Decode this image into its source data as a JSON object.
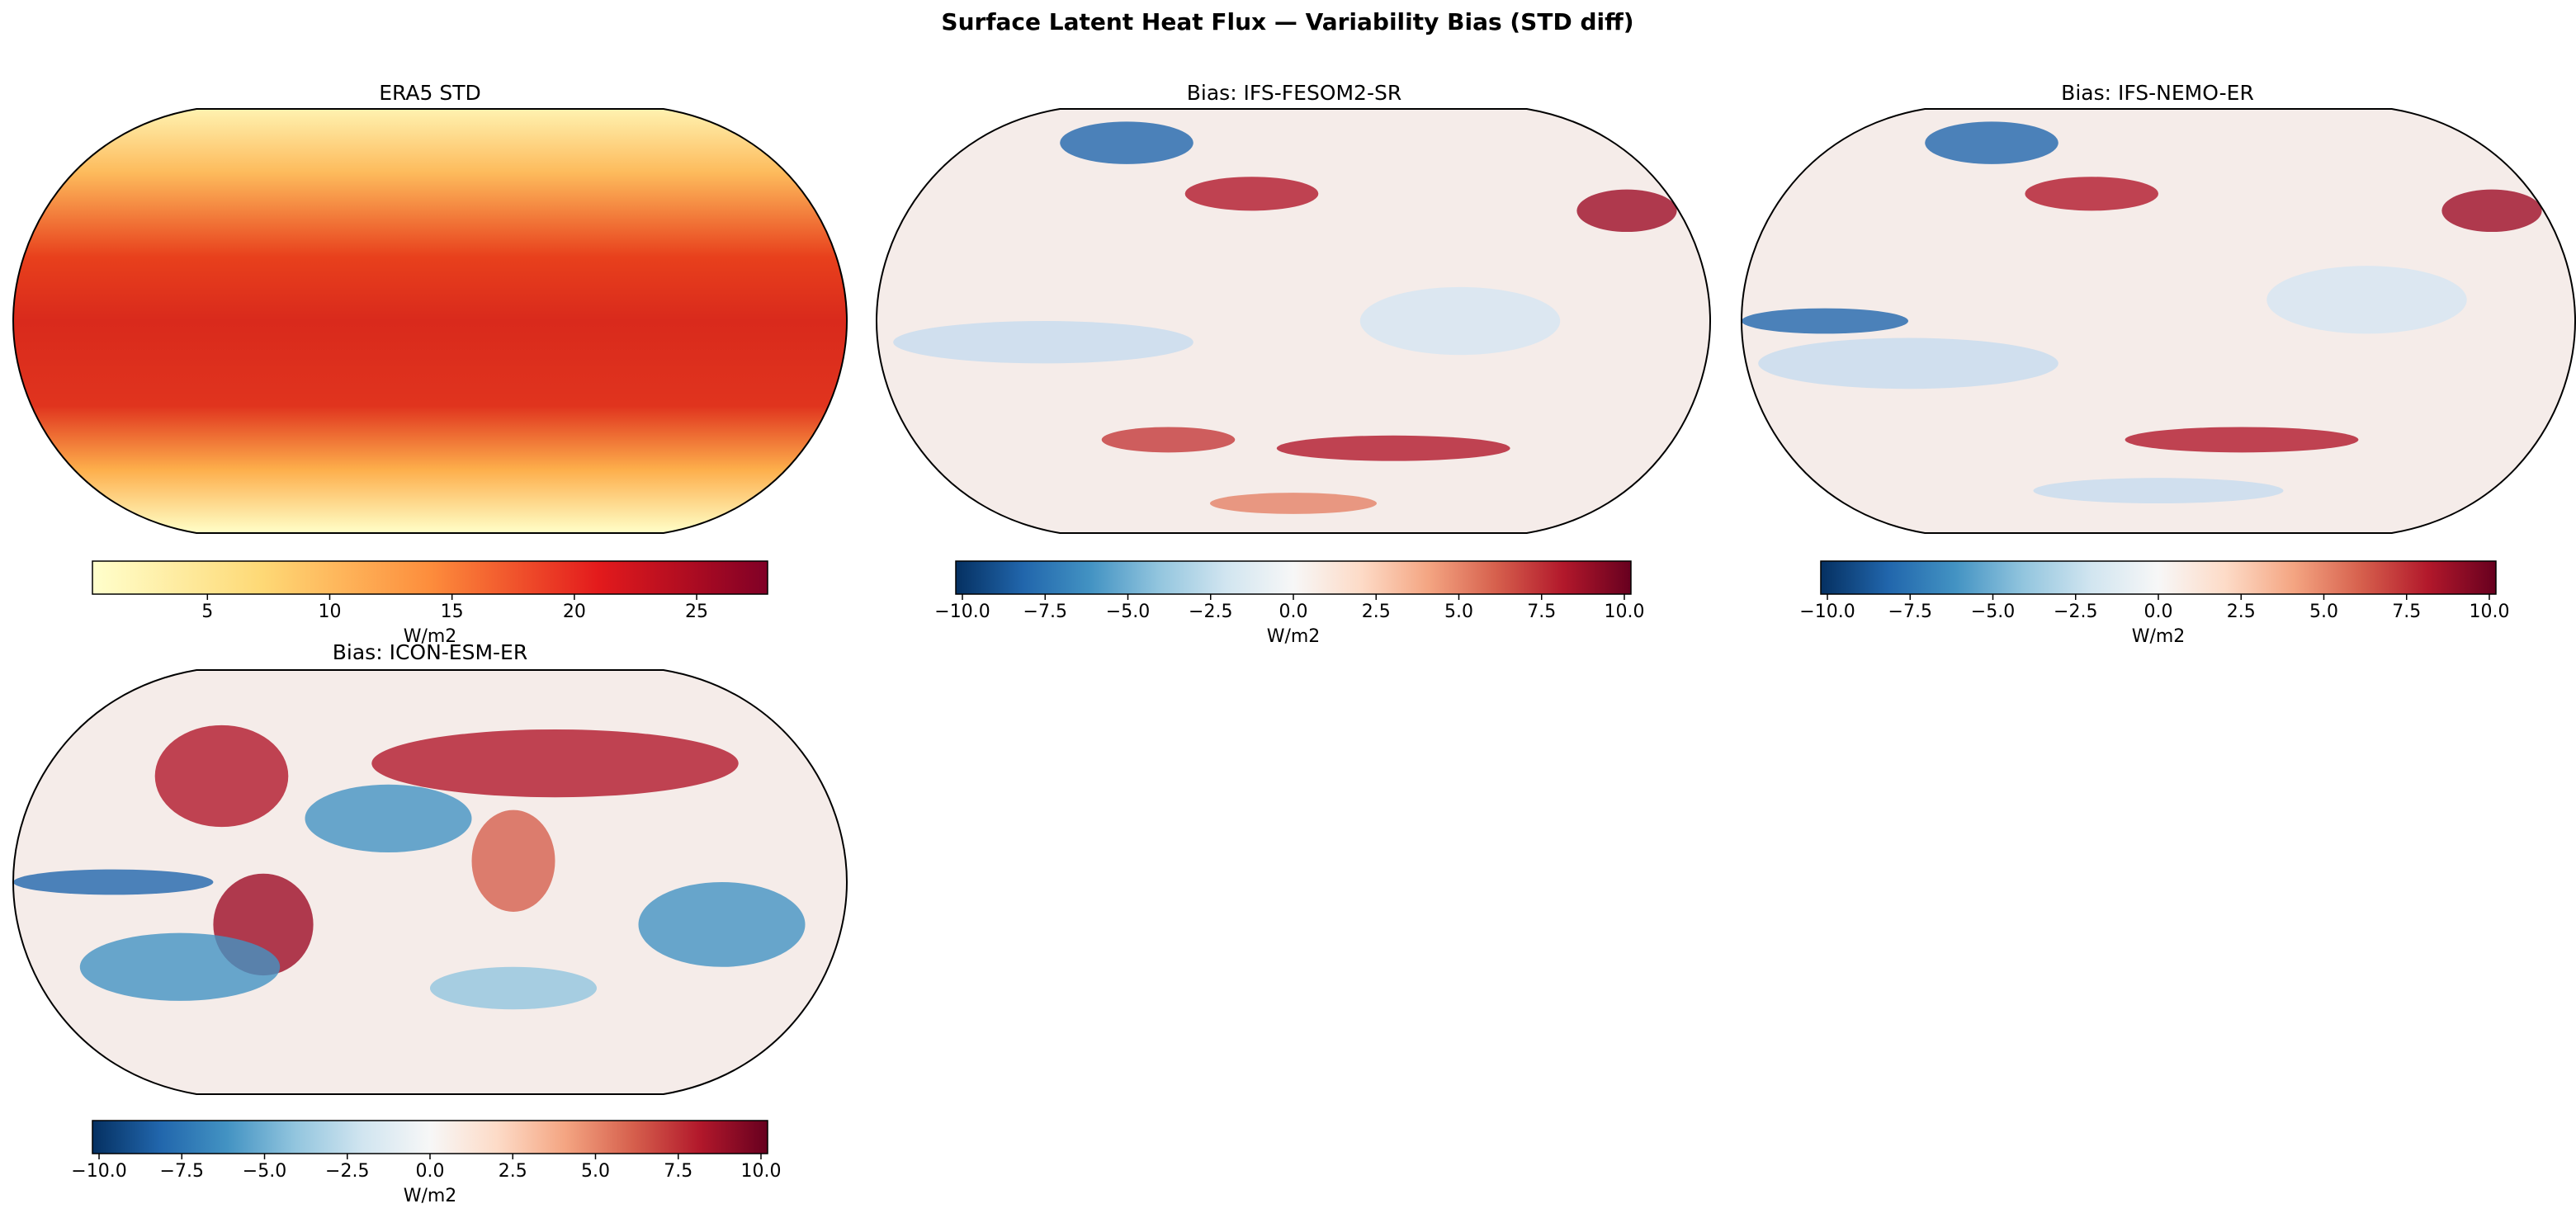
{
  "title": "Surface Latent Heat Flux — Variability Bias (STD diff)",
  "panels": [
    {
      "title": "ERA5 STD",
      "colorbar": {
        "colormap": "YlOrRd",
        "colors": [
          "#ffffcc",
          "#fed976",
          "#fd8d3c",
          "#e31a1c",
          "#800026"
        ],
        "lim": [
          0.3,
          27.9
        ],
        "ticks": [
          5,
          10,
          15,
          20,
          25
        ],
        "label": "W/m2"
      }
    },
    {
      "title": "Bias: IFS-FESOM2-SR",
      "colorbar": {
        "colormap": "RdBu_r",
        "colors": [
          "#053061",
          "#2166ac",
          "#4393c3",
          "#92c5de",
          "#d1e5f0",
          "#f7f7f7",
          "#fddbc7",
          "#f4a582",
          "#d6604d",
          "#b2182b",
          "#67001f"
        ],
        "lim": [
          -10.2,
          10.2
        ],
        "ticks": [
          {
            "value": -10,
            "label": "−10.0"
          },
          {
            "value": -7.5,
            "label": "−7.5"
          },
          {
            "value": -5,
            "label": "−5.0"
          },
          {
            "value": -2.5,
            "label": "−2.5"
          },
          {
            "value": 0,
            "label": "0.0"
          },
          2.5,
          {
            "value": 5,
            "label": "5.0"
          },
          7.5,
          {
            "value": 10,
            "label": "10.0"
          }
        ],
        "label": "W/m2"
      }
    },
    {
      "title": "Bias: IFS-NEMO-ER",
      "colorbar": {
        "colormap": "RdBu_r",
        "colors": [
          "#053061",
          "#2166ac",
          "#4393c3",
          "#92c5de",
          "#d1e5f0",
          "#f7f7f7",
          "#fddbc7",
          "#f4a582",
          "#d6604d",
          "#b2182b",
          "#67001f"
        ],
        "lim": [
          -10.2,
          10.2
        ],
        "ticks": [
          {
            "value": -10,
            "label": "−10.0"
          },
          {
            "value": -7.5,
            "label": "−7.5"
          },
          {
            "value": -5,
            "label": "−5.0"
          },
          {
            "value": -2.5,
            "label": "−2.5"
          },
          {
            "value": 0,
            "label": "0.0"
          },
          2.5,
          {
            "value": 5,
            "label": "5.0"
          },
          7.5,
          {
            "value": 10,
            "label": "10.0"
          }
        ],
        "label": "W/m2"
      }
    },
    {
      "title": "Bias: ICON-ESM-ER",
      "colorbar": {
        "colormap": "RdBu_r",
        "colors": [
          "#053061",
          "#2166ac",
          "#4393c3",
          "#92c5de",
          "#d1e5f0",
          "#f7f7f7",
          "#fddbc7",
          "#f4a582",
          "#d6604d",
          "#b2182b",
          "#67001f"
        ],
        "lim": [
          -10.2,
          10.2
        ],
        "ticks": [
          {
            "value": -10,
            "label": "−10.0"
          },
          {
            "value": -7.5,
            "label": "−7.5"
          },
          {
            "value": -5,
            "label": "−5.0"
          },
          {
            "value": -2.5,
            "label": "−2.5"
          },
          {
            "value": 0,
            "label": "0.0"
          },
          2.5,
          {
            "value": 5,
            "label": "5.0"
          },
          7.5,
          {
            "value": 10,
            "label": "10.0"
          }
        ],
        "label": "W/m2"
      }
    }
  ]
}
